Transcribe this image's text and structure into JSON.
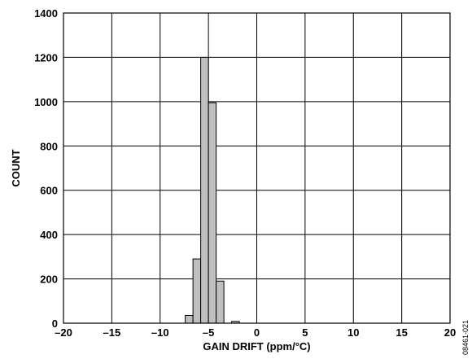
{
  "chart_data": {
    "type": "bar",
    "title": "",
    "xlabel": "GAIN DRIFT (ppm/°C)",
    "ylabel": "COUNT",
    "xlim": [
      -20,
      20
    ],
    "ylim": [
      0,
      1400
    ],
    "x_ticks": [
      -20,
      -15,
      -10,
      -5,
      0,
      5,
      10,
      15,
      20
    ],
    "x_tick_labels": [
      "–20",
      "–15",
      "–10",
      "–5",
      "0",
      "5",
      "10",
      "15",
      "20"
    ],
    "y_ticks": [
      0,
      200,
      400,
      600,
      800,
      1000,
      1200,
      1400
    ],
    "y_tick_labels": [
      "0",
      "200",
      "400",
      "600",
      "800",
      "1000",
      "1200",
      "1400"
    ],
    "grid": true,
    "bin_width": 0.8,
    "bins": [
      {
        "x_start": -7.4,
        "x_end": -6.6,
        "count": 35
      },
      {
        "x_start": -6.6,
        "x_end": -5.8,
        "count": 290
      },
      {
        "x_start": -5.8,
        "x_end": -5.0,
        "count": 1200
      },
      {
        "x_start": -5.0,
        "x_end": -4.2,
        "count": 995
      },
      {
        "x_start": -4.2,
        "x_end": -3.4,
        "count": 190
      },
      {
        "x_start": -2.6,
        "x_end": -1.8,
        "count": 8
      }
    ],
    "figure_code": "08461-021"
  }
}
